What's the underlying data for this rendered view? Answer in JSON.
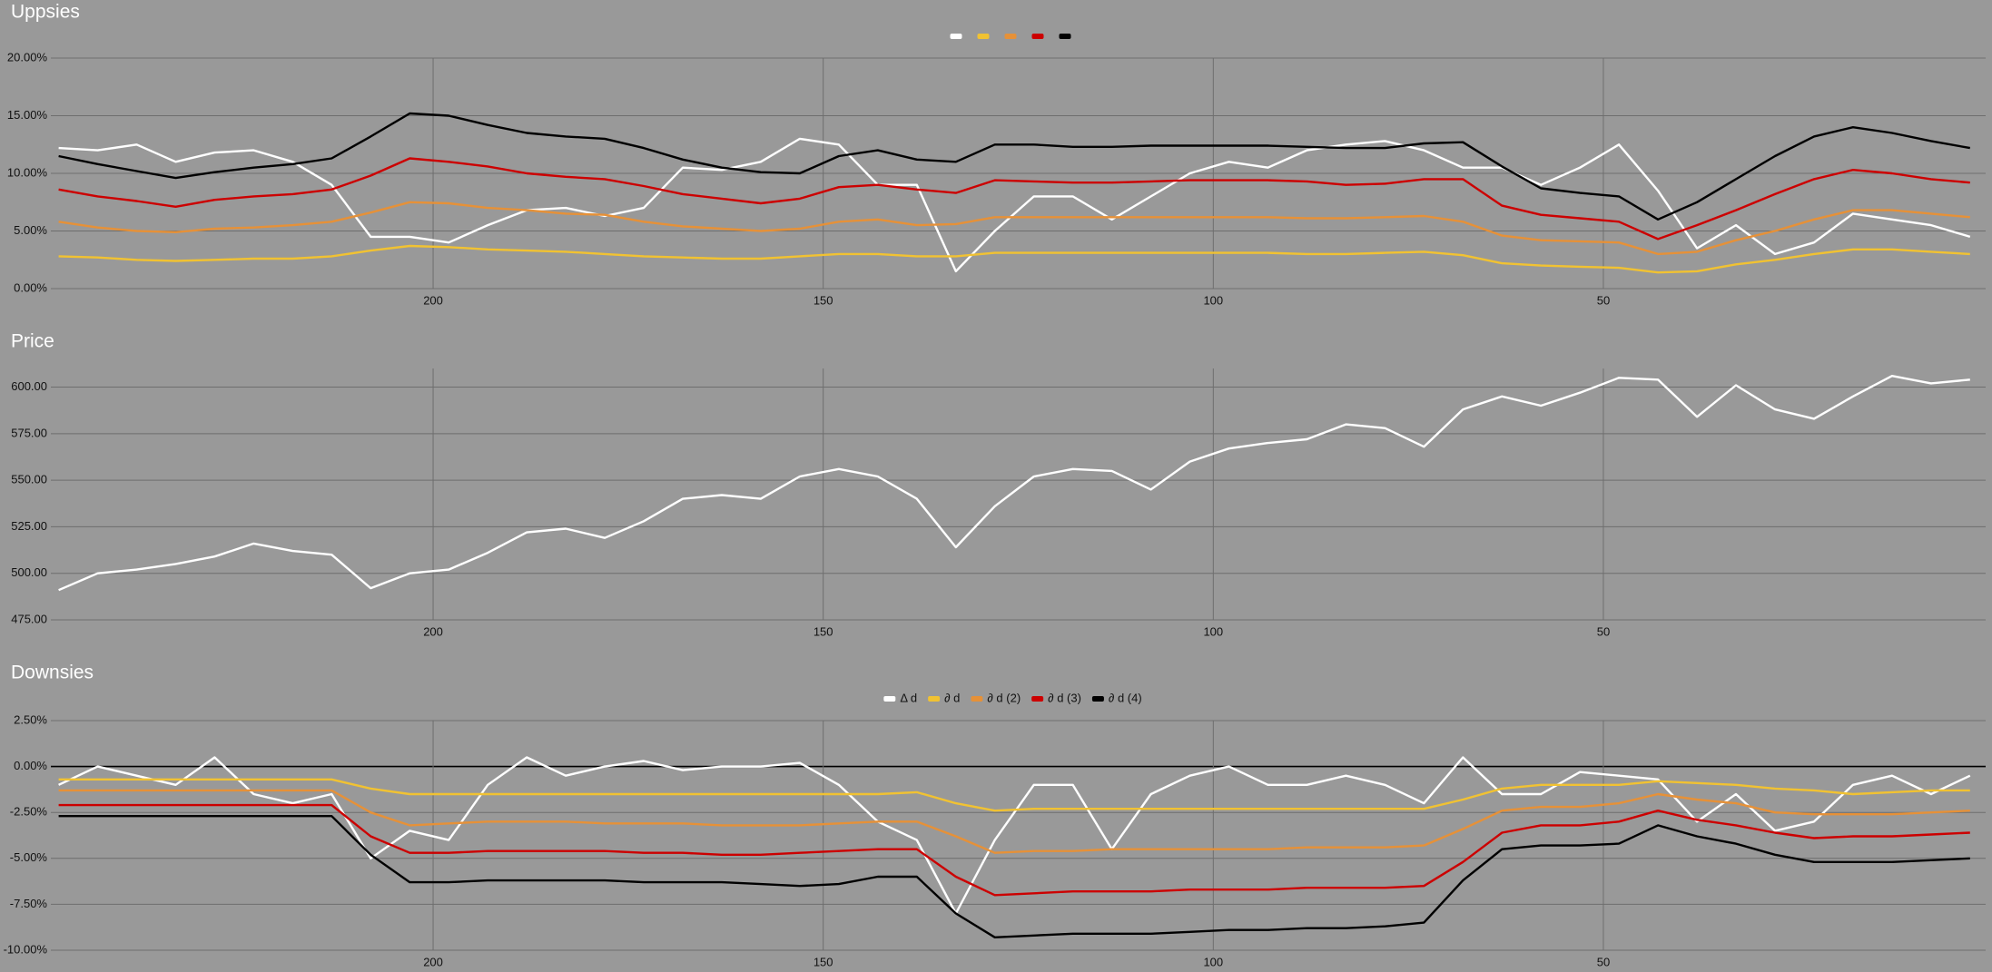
{
  "chart_data": [
    {
      "type": "line",
      "title": "Uppsies",
      "x": [
        248,
        243,
        238,
        233,
        228,
        223,
        218,
        213,
        208,
        203,
        198,
        193,
        188,
        183,
        178,
        173,
        168,
        163,
        158,
        153,
        148,
        143,
        138,
        133,
        128,
        123,
        118,
        113,
        108,
        103,
        98,
        93,
        88,
        83,
        78,
        73,
        68,
        63,
        58,
        53,
        48,
        43,
        38,
        33,
        28,
        23,
        18,
        13,
        8,
        3
      ],
      "xlim": [
        249,
        1
      ],
      "xticks": [
        200,
        150,
        100,
        50
      ],
      "ylim": [
        0,
        20
      ],
      "yticks": [
        {
          "value": 0,
          "label": "0.00%"
        },
        {
          "value": 5,
          "label": "5.00%"
        },
        {
          "value": 10,
          "label": "10.00%"
        },
        {
          "value": 15,
          "label": "15.00%"
        },
        {
          "value": 20,
          "label": "20.00%"
        }
      ],
      "grid": true,
      "legend": "top",
      "series": [
        {
          "color": "#ffffff",
          "values": [
            12.2,
            12.0,
            12.5,
            11.0,
            11.8,
            12.0,
            11.0,
            9.0,
            4.5,
            4.5,
            4.0,
            5.5,
            6.8,
            7.0,
            6.3,
            7.0,
            10.5,
            10.3,
            11.0,
            13.0,
            12.5,
            9.0,
            9.0,
            1.5,
            5.0,
            8.0,
            8.0,
            6.0,
            8.0,
            10.0,
            11.0,
            10.5,
            12.0,
            12.5,
            12.8,
            12.0,
            10.5,
            10.5,
            9.0,
            10.5,
            12.5,
            8.5,
            3.5,
            5.5,
            3.0,
            4.0,
            6.5,
            6.0,
            5.5,
            4.5
          ]
        },
        {
          "color": "#f1c232",
          "values": [
            2.8,
            2.7,
            2.5,
            2.4,
            2.5,
            2.6,
            2.6,
            2.8,
            3.3,
            3.7,
            3.6,
            3.4,
            3.3,
            3.2,
            3.0,
            2.8,
            2.7,
            2.6,
            2.6,
            2.8,
            3.0,
            3.0,
            2.8,
            2.8,
            3.1,
            3.1,
            3.1,
            3.1,
            3.1,
            3.1,
            3.1,
            3.1,
            3.0,
            3.0,
            3.1,
            3.2,
            2.9,
            2.2,
            2.0,
            1.9,
            1.8,
            1.4,
            1.5,
            2.1,
            2.5,
            3.0,
            3.4,
            3.4,
            3.2,
            3.0
          ]
        },
        {
          "color": "#e69138",
          "values": [
            5.8,
            5.3,
            5.0,
            4.9,
            5.2,
            5.3,
            5.5,
            5.8,
            6.6,
            7.5,
            7.4,
            7.0,
            6.8,
            6.5,
            6.4,
            5.8,
            5.4,
            5.2,
            5.0,
            5.2,
            5.8,
            6.0,
            5.5,
            5.6,
            6.2,
            6.2,
            6.2,
            6.2,
            6.2,
            6.2,
            6.2,
            6.2,
            6.1,
            6.1,
            6.2,
            6.3,
            5.8,
            4.6,
            4.2,
            4.1,
            4.0,
            3.0,
            3.2,
            4.2,
            5.0,
            6.0,
            6.8,
            6.8,
            6.5,
            6.2
          ]
        },
        {
          "color": "#cc0000",
          "values": [
            8.6,
            8.0,
            7.6,
            7.1,
            7.7,
            8.0,
            8.2,
            8.6,
            9.8,
            11.3,
            11.0,
            10.6,
            10.0,
            9.7,
            9.5,
            8.9,
            8.2,
            7.8,
            7.4,
            7.8,
            8.8,
            9.0,
            8.6,
            8.3,
            9.4,
            9.3,
            9.2,
            9.2,
            9.3,
            9.4,
            9.4,
            9.4,
            9.3,
            9.0,
            9.1,
            9.5,
            9.5,
            7.2,
            6.4,
            6.1,
            5.8,
            4.3,
            5.5,
            6.8,
            8.2,
            9.5,
            10.3,
            10.0,
            9.5,
            9.2
          ]
        },
        {
          "color": "#000000",
          "values": [
            11.5,
            10.8,
            10.2,
            9.6,
            10.1,
            10.5,
            10.8,
            11.3,
            13.2,
            15.2,
            15.0,
            14.2,
            13.5,
            13.2,
            13.0,
            12.2,
            11.2,
            10.5,
            10.1,
            10.0,
            11.5,
            12.0,
            11.2,
            11.0,
            12.5,
            12.5,
            12.3,
            12.3,
            12.4,
            12.4,
            12.4,
            12.4,
            12.3,
            12.2,
            12.2,
            12.6,
            12.7,
            10.6,
            8.7,
            8.3,
            8.0,
            6.0,
            7.5,
            9.5,
            11.5,
            13.2,
            14.0,
            13.5,
            12.8,
            12.2
          ]
        }
      ]
    },
    {
      "type": "line",
      "title": "Price",
      "x": [
        248,
        243,
        238,
        233,
        228,
        223,
        218,
        213,
        208,
        203,
        198,
        193,
        188,
        183,
        178,
        173,
        168,
        163,
        158,
        153,
        148,
        143,
        138,
        133,
        128,
        123,
        118,
        113,
        108,
        103,
        98,
        93,
        88,
        83,
        78,
        73,
        68,
        63,
        58,
        53,
        48,
        43,
        38,
        33,
        28,
        23,
        18,
        13,
        8,
        3
      ],
      "xlim": [
        249,
        1
      ],
      "xticks": [
        200,
        150,
        100,
        50
      ],
      "ylim": [
        475,
        610
      ],
      "yticks": [
        {
          "value": 475,
          "label": "475.00"
        },
        {
          "value": 500,
          "label": "500.00"
        },
        {
          "value": 525,
          "label": "525.00"
        },
        {
          "value": 550,
          "label": "550.00"
        },
        {
          "value": 575,
          "label": "575.00"
        },
        {
          "value": 600,
          "label": "600.00"
        }
      ],
      "grid": true,
      "series": [
        {
          "color": "#ffffff",
          "values": [
            491,
            500,
            502,
            505,
            509,
            516,
            512,
            510,
            492,
            500,
            502,
            511,
            522,
            524,
            519,
            528,
            540,
            542,
            540,
            552,
            556,
            552,
            540,
            514,
            536,
            552,
            556,
            555,
            545,
            560,
            567,
            570,
            572,
            580,
            578,
            568,
            588,
            595,
            590,
            597,
            605,
            604,
            584,
            601,
            588,
            583,
            595,
            606,
            602,
            604
          ]
        }
      ]
    },
    {
      "type": "line",
      "title": "Downsies",
      "x": [
        248,
        243,
        238,
        233,
        228,
        223,
        218,
        213,
        208,
        203,
        198,
        193,
        188,
        183,
        178,
        173,
        168,
        163,
        158,
        153,
        148,
        143,
        138,
        133,
        128,
        123,
        118,
        113,
        108,
        103,
        98,
        93,
        88,
        83,
        78,
        73,
        68,
        63,
        58,
        53,
        48,
        43,
        38,
        33,
        28,
        23,
        18,
        13,
        8,
        3
      ],
      "xlim": [
        249,
        1
      ],
      "xticks": [
        200,
        150,
        100,
        50
      ],
      "ylim": [
        -10,
        2.5
      ],
      "yticks": [
        {
          "value": -10,
          "label": "-10.00%"
        },
        {
          "value": -7.5,
          "label": "-7.50%"
        },
        {
          "value": -5,
          "label": "-5.00%"
        },
        {
          "value": -2.5,
          "label": "-2.50%"
        },
        {
          "value": 0,
          "label": "0.00%"
        },
        {
          "value": 2.5,
          "label": "2.50%"
        }
      ],
      "grid": true,
      "legend": "top",
      "series": [
        {
          "name": "Δ d",
          "color": "#ffffff",
          "values": [
            -1.0,
            0.0,
            -0.5,
            -1.0,
            0.5,
            -1.5,
            -2.0,
            -1.5,
            -5.0,
            -3.5,
            -4.0,
            -1.0,
            0.5,
            -0.5,
            0.0,
            0.3,
            -0.2,
            0.0,
            0.0,
            0.2,
            -1.0,
            -3.0,
            -4.0,
            -8.0,
            -4.0,
            -1.0,
            -1.0,
            -4.5,
            -1.5,
            -0.5,
            0.0,
            -1.0,
            -1.0,
            -0.5,
            -1.0,
            -2.0,
            0.5,
            -1.5,
            -1.5,
            -0.3,
            -0.5,
            -0.7,
            -3.0,
            -1.5,
            -3.5,
            -3.0,
            -1.0,
            -0.5,
            -1.5,
            -0.5
          ]
        },
        {
          "name": "∂ d",
          "color": "#f1c232",
          "values": [
            -0.7,
            -0.7,
            -0.7,
            -0.7,
            -0.7,
            -0.7,
            -0.7,
            -0.7,
            -1.2,
            -1.5,
            -1.5,
            -1.5,
            -1.5,
            -1.5,
            -1.5,
            -1.5,
            -1.5,
            -1.5,
            -1.5,
            -1.5,
            -1.5,
            -1.5,
            -1.4,
            -2.0,
            -2.4,
            -2.3,
            -2.3,
            -2.3,
            -2.3,
            -2.3,
            -2.3,
            -2.3,
            -2.3,
            -2.3,
            -2.3,
            -2.3,
            -1.8,
            -1.2,
            -1.0,
            -1.0,
            -1.0,
            -0.8,
            -0.9,
            -1.0,
            -1.2,
            -1.3,
            -1.5,
            -1.4,
            -1.3,
            -1.3
          ]
        },
        {
          "name": "∂ d (2)",
          "color": "#e69138",
          "values": [
            -1.3,
            -1.3,
            -1.3,
            -1.3,
            -1.3,
            -1.3,
            -1.3,
            -1.3,
            -2.5,
            -3.2,
            -3.1,
            -3.0,
            -3.0,
            -3.0,
            -3.1,
            -3.1,
            -3.1,
            -3.2,
            -3.2,
            -3.2,
            -3.1,
            -3.0,
            -3.0,
            -3.8,
            -4.7,
            -4.6,
            -4.6,
            -4.5,
            -4.5,
            -4.5,
            -4.5,
            -4.5,
            -4.4,
            -4.4,
            -4.4,
            -4.3,
            -3.4,
            -2.4,
            -2.2,
            -2.2,
            -2.0,
            -1.5,
            -1.8,
            -2.0,
            -2.5,
            -2.6,
            -2.6,
            -2.6,
            -2.5,
            -2.4
          ]
        },
        {
          "name": "∂ d (3)",
          "color": "#cc0000",
          "values": [
            -2.1,
            -2.1,
            -2.1,
            -2.1,
            -2.1,
            -2.1,
            -2.1,
            -2.1,
            -3.8,
            -4.7,
            -4.7,
            -4.6,
            -4.6,
            -4.6,
            -4.6,
            -4.7,
            -4.7,
            -4.8,
            -4.8,
            -4.7,
            -4.6,
            -4.5,
            -4.5,
            -6.0,
            -7.0,
            -6.9,
            -6.8,
            -6.8,
            -6.8,
            -6.7,
            -6.7,
            -6.7,
            -6.6,
            -6.6,
            -6.6,
            -6.5,
            -5.2,
            -3.6,
            -3.2,
            -3.2,
            -3.0,
            -2.4,
            -2.9,
            -3.2,
            -3.6,
            -3.9,
            -3.8,
            -3.8,
            -3.7,
            -3.6
          ]
        },
        {
          "name": "∂ d (4)",
          "color": "#000000",
          "values": [
            -2.7,
            -2.7,
            -2.7,
            -2.7,
            -2.7,
            -2.7,
            -2.7,
            -2.7,
            -4.8,
            -6.3,
            -6.3,
            -6.2,
            -6.2,
            -6.2,
            -6.2,
            -6.3,
            -6.3,
            -6.3,
            -6.4,
            -6.5,
            -6.4,
            -6.0,
            -6.0,
            -8.0,
            -9.3,
            -9.2,
            -9.1,
            -9.1,
            -9.1,
            -9.0,
            -8.9,
            -8.9,
            -8.8,
            -8.8,
            -8.7,
            -8.5,
            -6.2,
            -4.5,
            -4.3,
            -4.3,
            -4.2,
            -3.2,
            -3.8,
            -4.2,
            -4.8,
            -5.2,
            -5.2,
            -5.2,
            -5.1,
            -5.0
          ]
        }
      ]
    }
  ]
}
